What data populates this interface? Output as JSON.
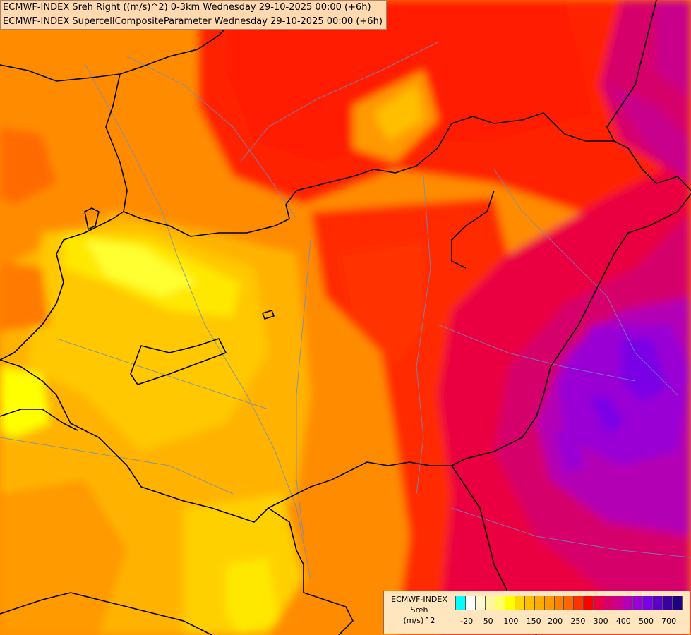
{
  "header": {
    "line1": "ECMWF-INDEX Sreh Right ((m/s)^2) 0-3km Wednesday 29-10-2025 00:00 (+6h)",
    "line2": "ECMWF-INDEX SupercellCompositeParameter Wednesday 29-10-2025 00:00 (+6h)"
  },
  "legend": {
    "title_line1": "ECMWF-INDEX",
    "title_line2": "Sreh",
    "title_line3": "(m/s)^2",
    "colors": [
      "#00ffff",
      "#ffffff",
      "#fff8d0",
      "#fff5a0",
      "#ffff66",
      "#ffff00",
      "#ffd700",
      "#ffbf00",
      "#ffaa00",
      "#ff9900",
      "#ff8000",
      "#ff6600",
      "#ff3300",
      "#ff0000",
      "#ea0040",
      "#d6006a",
      "#c8008c",
      "#b400b4",
      "#9a00d4",
      "#7a00e6",
      "#5a00c8",
      "#3c00a0",
      "#1e0080"
    ],
    "ticks": [
      {
        "label": "-20",
        "pos": 0.05
      },
      {
        "label": "50",
        "pos": 0.145
      },
      {
        "label": "100",
        "pos": 0.245
      },
      {
        "label": "150",
        "pos": 0.345
      },
      {
        "label": "200",
        "pos": 0.44
      },
      {
        "label": "250",
        "pos": 0.54
      },
      {
        "label": "300",
        "pos": 0.64
      },
      {
        "label": "400",
        "pos": 0.74
      },
      {
        "label": "500",
        "pos": 0.84
      },
      {
        "label": "700",
        "pos": 0.94
      }
    ]
  }
}
